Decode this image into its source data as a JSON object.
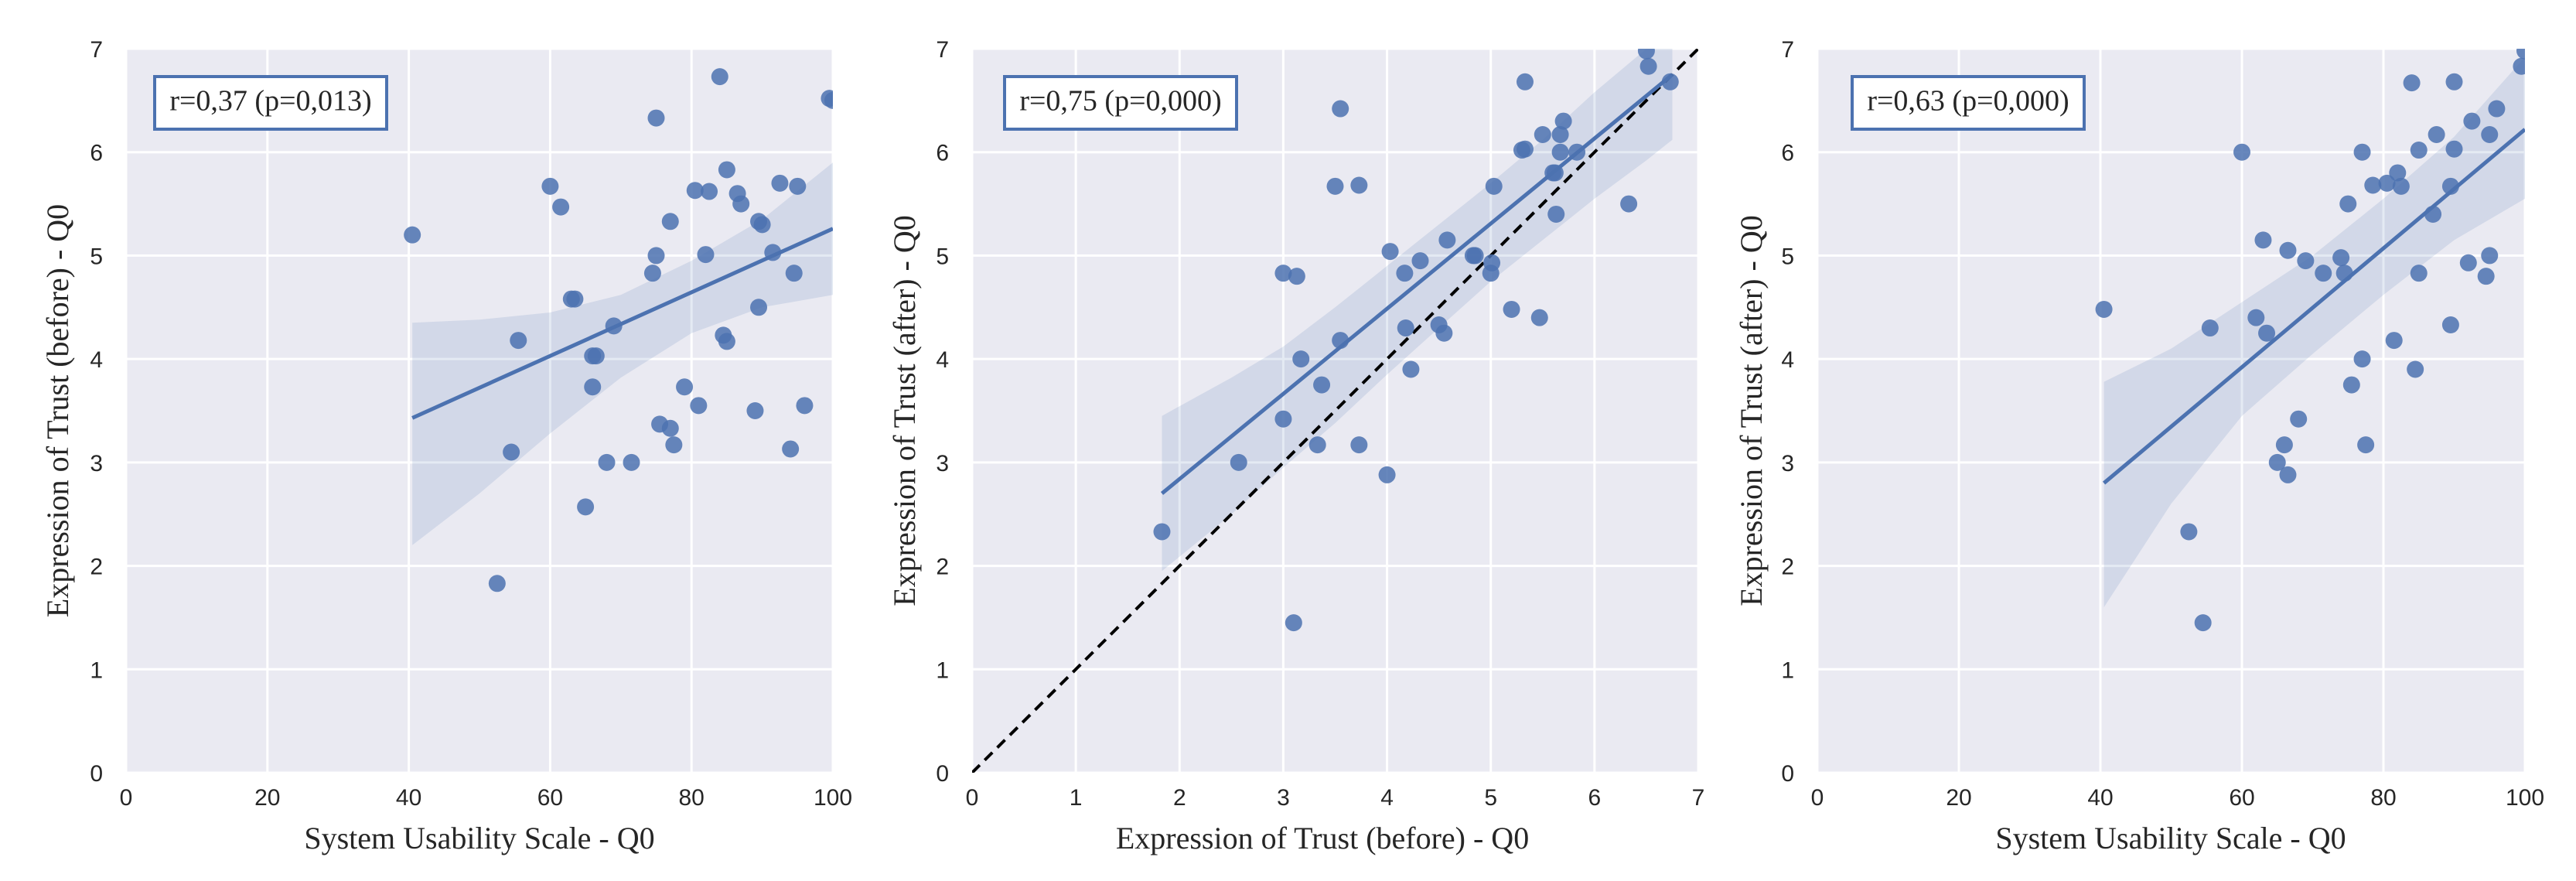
{
  "chart_data": [
    {
      "type": "scatter",
      "annotation": "r=0,37 (p=0,013)",
      "xlabel": "System Usability Scale - Q0",
      "ylabel": "Expression of Trust (before) - Q0",
      "xlim": [
        0,
        100
      ],
      "ylim": [
        0,
        7
      ],
      "xticks": [
        "0",
        "20",
        "40",
        "60",
        "80",
        "100"
      ],
      "xtick_values": [
        0,
        20,
        40,
        60,
        80,
        100
      ],
      "yticks": [
        "0",
        "1",
        "2",
        "3",
        "4",
        "5",
        "6",
        "7"
      ],
      "ytick_values": [
        0,
        1,
        2,
        3,
        4,
        5,
        6,
        7
      ],
      "grid": true,
      "regression": {
        "x": [
          40.5,
          100
        ],
        "y": [
          3.43,
          5.26
        ]
      },
      "ci_band": {
        "x": [
          40.5,
          50,
          60,
          70,
          80,
          90,
          100
        ],
        "upper": [
          4.35,
          4.38,
          4.45,
          4.62,
          4.95,
          5.35,
          5.9
        ],
        "lower": [
          2.2,
          2.7,
          3.28,
          3.82,
          4.25,
          4.5,
          4.62
        ]
      },
      "identity_line": false,
      "points": [
        [
          40.5,
          5.2
        ],
        [
          52.5,
          1.83
        ],
        [
          54.5,
          3.1
        ],
        [
          55.5,
          4.18
        ],
        [
          60,
          5.67
        ],
        [
          61.5,
          5.47
        ],
        [
          63,
          4.58
        ],
        [
          63.5,
          4.58
        ],
        [
          65,
          2.57
        ],
        [
          66,
          4.03
        ],
        [
          66,
          3.73
        ],
        [
          66.5,
          4.03
        ],
        [
          68,
          3.0
        ],
        [
          69,
          4.32
        ],
        [
          71.5,
          3.0
        ],
        [
          74.5,
          4.83
        ],
        [
          75,
          5.0
        ],
        [
          75,
          6.33
        ],
        [
          75.5,
          3.37
        ],
        [
          77,
          5.33
        ],
        [
          77,
          3.33
        ],
        [
          77.5,
          3.17
        ],
        [
          79,
          3.73
        ],
        [
          80.5,
          5.63
        ],
        [
          81,
          3.55
        ],
        [
          82,
          5.01
        ],
        [
          82.5,
          5.62
        ],
        [
          84,
          6.73
        ],
        [
          84.5,
          4.23
        ],
        [
          85,
          4.17
        ],
        [
          85,
          5.83
        ],
        [
          86.5,
          5.6
        ],
        [
          87,
          5.5
        ],
        [
          89,
          3.5
        ],
        [
          89.5,
          5.33
        ],
        [
          89.5,
          4.5
        ],
        [
          90,
          5.3
        ],
        [
          91.5,
          5.03
        ],
        [
          92.5,
          5.7
        ],
        [
          94,
          3.13
        ],
        [
          94.5,
          4.83
        ],
        [
          95,
          5.67
        ],
        [
          96,
          3.55
        ],
        [
          99.5,
          6.52
        ],
        [
          100,
          6.5
        ]
      ]
    },
    {
      "type": "scatter",
      "annotation": "r=0,75 (p=0,000)",
      "xlabel": "Expression of Trust (before) - Q0",
      "ylabel": "Expression of Trust (after) - Q0",
      "xlim": [
        0,
        7
      ],
      "ylim": [
        0,
        7
      ],
      "xticks": [
        "0",
        "1",
        "2",
        "3",
        "4",
        "5",
        "6",
        "7"
      ],
      "xtick_values": [
        0,
        1,
        2,
        3,
        4,
        5,
        6,
        7
      ],
      "yticks": [
        "0",
        "1",
        "2",
        "3",
        "4",
        "5",
        "6",
        "7"
      ],
      "ytick_values": [
        0,
        1,
        2,
        3,
        4,
        5,
        6,
        7
      ],
      "grid": true,
      "regression": {
        "x": [
          1.83,
          6.75
        ],
        "y": [
          2.7,
          6.75
        ]
      },
      "ci_band": {
        "x": [
          1.83,
          2.5,
          3.0,
          3.5,
          4.0,
          4.5,
          5.0,
          5.5,
          6.0,
          6.5,
          6.75
        ],
        "upper": [
          3.45,
          3.82,
          4.12,
          4.5,
          4.9,
          5.3,
          5.7,
          6.12,
          6.58,
          7.0,
          7.0
        ],
        "lower": [
          1.95,
          2.5,
          2.95,
          3.38,
          3.85,
          4.3,
          4.75,
          5.15,
          5.55,
          5.92,
          6.12
        ]
      },
      "identity_line": true,
      "points": [
        [
          1.83,
          2.33
        ],
        [
          2.57,
          3.0
        ],
        [
          3.0,
          4.83
        ],
        [
          3.0,
          3.42
        ],
        [
          3.1,
          1.45
        ],
        [
          3.13,
          4.8
        ],
        [
          3.17,
          4.0
        ],
        [
          3.33,
          3.17
        ],
        [
          3.37,
          3.75
        ],
        [
          3.5,
          5.67
        ],
        [
          3.55,
          4.18
        ],
        [
          3.55,
          6.42
        ],
        [
          3.73,
          5.68
        ],
        [
          3.73,
          3.17
        ],
        [
          4.0,
          2.88
        ],
        [
          4.03,
          5.04
        ],
        [
          4.17,
          4.83
        ],
        [
          4.18,
          4.3
        ],
        [
          4.23,
          3.9
        ],
        [
          4.32,
          4.95
        ],
        [
          4.5,
          4.33
        ],
        [
          4.55,
          4.25
        ],
        [
          4.58,
          5.15
        ],
        [
          4.83,
          5.0
        ],
        [
          4.85,
          5.0
        ],
        [
          5.0,
          4.83
        ],
        [
          5.01,
          4.93
        ],
        [
          5.03,
          5.67
        ],
        [
          5.2,
          4.48
        ],
        [
          5.3,
          6.02
        ],
        [
          5.33,
          6.68
        ],
        [
          5.33,
          6.03
        ],
        [
          5.47,
          4.4
        ],
        [
          5.5,
          6.17
        ],
        [
          5.6,
          5.8
        ],
        [
          5.62,
          5.8
        ],
        [
          5.63,
          5.4
        ],
        [
          5.67,
          6.17
        ],
        [
          5.67,
          6.0
        ],
        [
          5.7,
          6.3
        ],
        [
          5.83,
          6.0
        ],
        [
          6.33,
          5.5
        ],
        [
          6.5,
          6.98
        ],
        [
          6.52,
          6.83
        ],
        [
          6.73,
          6.68
        ]
      ]
    },
    {
      "type": "scatter",
      "annotation": "r=0,63 (p=0,000)",
      "xlabel": "System Usability Scale - Q0",
      "ylabel": "Expression of Trust (after) - Q0",
      "xlim": [
        0,
        100
      ],
      "ylim": [
        0,
        7
      ],
      "xticks": [
        "0",
        "20",
        "40",
        "60",
        "80",
        "100"
      ],
      "xtick_values": [
        0,
        20,
        40,
        60,
        80,
        100
      ],
      "yticks": [
        "0",
        "1",
        "2",
        "3",
        "4",
        "5",
        "6",
        "7"
      ],
      "ytick_values": [
        0,
        1,
        2,
        3,
        4,
        5,
        6,
        7
      ],
      "grid": true,
      "regression": {
        "x": [
          40.5,
          100
        ],
        "y": [
          2.8,
          6.22
        ]
      },
      "ci_band": {
        "x": [
          40.5,
          50,
          60,
          70,
          80,
          90,
          100
        ],
        "upper": [
          3.78,
          4.1,
          4.55,
          5.0,
          5.55,
          6.15,
          6.92
        ],
        "lower": [
          1.6,
          2.6,
          3.45,
          4.05,
          4.62,
          5.15,
          5.55
        ]
      },
      "identity_line": false,
      "points": [
        [
          40.5,
          4.48
        ],
        [
          52.5,
          2.33
        ],
        [
          54.5,
          1.45
        ],
        [
          55.5,
          4.3
        ],
        [
          60,
          6.0
        ],
        [
          62,
          4.4
        ],
        [
          63,
          5.15
        ],
        [
          63.5,
          4.25
        ],
        [
          65,
          3.0
        ],
        [
          66,
          3.17
        ],
        [
          66.5,
          5.05
        ],
        [
          66.5,
          2.88
        ],
        [
          68,
          3.42
        ],
        [
          69,
          4.95
        ],
        [
          71.5,
          4.83
        ],
        [
          74,
          4.98
        ],
        [
          74.5,
          4.83
        ],
        [
          75,
          5.5
        ],
        [
          75.5,
          3.75
        ],
        [
          77,
          6.0
        ],
        [
          77,
          4.0
        ],
        [
          77.5,
          3.17
        ],
        [
          78.5,
          5.68
        ],
        [
          80.5,
          5.7
        ],
        [
          81.5,
          4.18
        ],
        [
          82,
          5.8
        ],
        [
          82.5,
          5.67
        ],
        [
          84,
          6.67
        ],
        [
          84.5,
          3.9
        ],
        [
          85,
          4.83
        ],
        [
          85,
          6.02
        ],
        [
          87,
          5.4
        ],
        [
          87.5,
          6.17
        ],
        [
          89.5,
          5.67
        ],
        [
          89.5,
          4.33
        ],
        [
          90,
          6.68
        ],
        [
          90,
          6.03
        ],
        [
          92,
          4.93
        ],
        [
          92.5,
          6.3
        ],
        [
          94.5,
          4.8
        ],
        [
          95,
          5.0
        ],
        [
          95,
          6.17
        ],
        [
          96,
          6.42
        ],
        [
          99.5,
          6.83
        ],
        [
          100,
          6.98
        ]
      ]
    }
  ],
  "colors": {
    "panel_bg": "#eaeaf2",
    "grid": "#ffffff",
    "point": "#4c72b0",
    "regression": "#4c72b0",
    "ci_band": "#4c72b0",
    "annotation_border": "#4c72b0",
    "identity_line": "#000000"
  }
}
